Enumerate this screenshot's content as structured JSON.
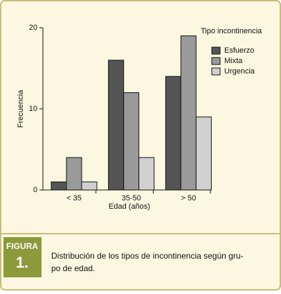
{
  "chart_data": {
    "type": "bar",
    "categories": [
      "< 35",
      "35-50",
      "> 50"
    ],
    "series": [
      {
        "name": "Esfuerzo",
        "color": "#555555",
        "values": [
          1,
          16,
          14
        ]
      },
      {
        "name": "Mixta",
        "color": "#9a9a9a",
        "values": [
          4,
          12,
          19
        ]
      },
      {
        "name": "Urgencia",
        "color": "#d0d0d0",
        "values": [
          1,
          4,
          9
        ]
      }
    ],
    "ylim": [
      0,
      20
    ],
    "yticks": [
      0,
      10,
      20
    ],
    "xlabel": "Edad (años)",
    "ylabel": "Frecuencia",
    "legend_title": "Tipo incontinencia"
  },
  "caption": {
    "label": "FIGURA",
    "number": "1.",
    "lines": [
      "Distribución de los tipos de incontinencia según gru-",
      "po de edad."
    ]
  }
}
